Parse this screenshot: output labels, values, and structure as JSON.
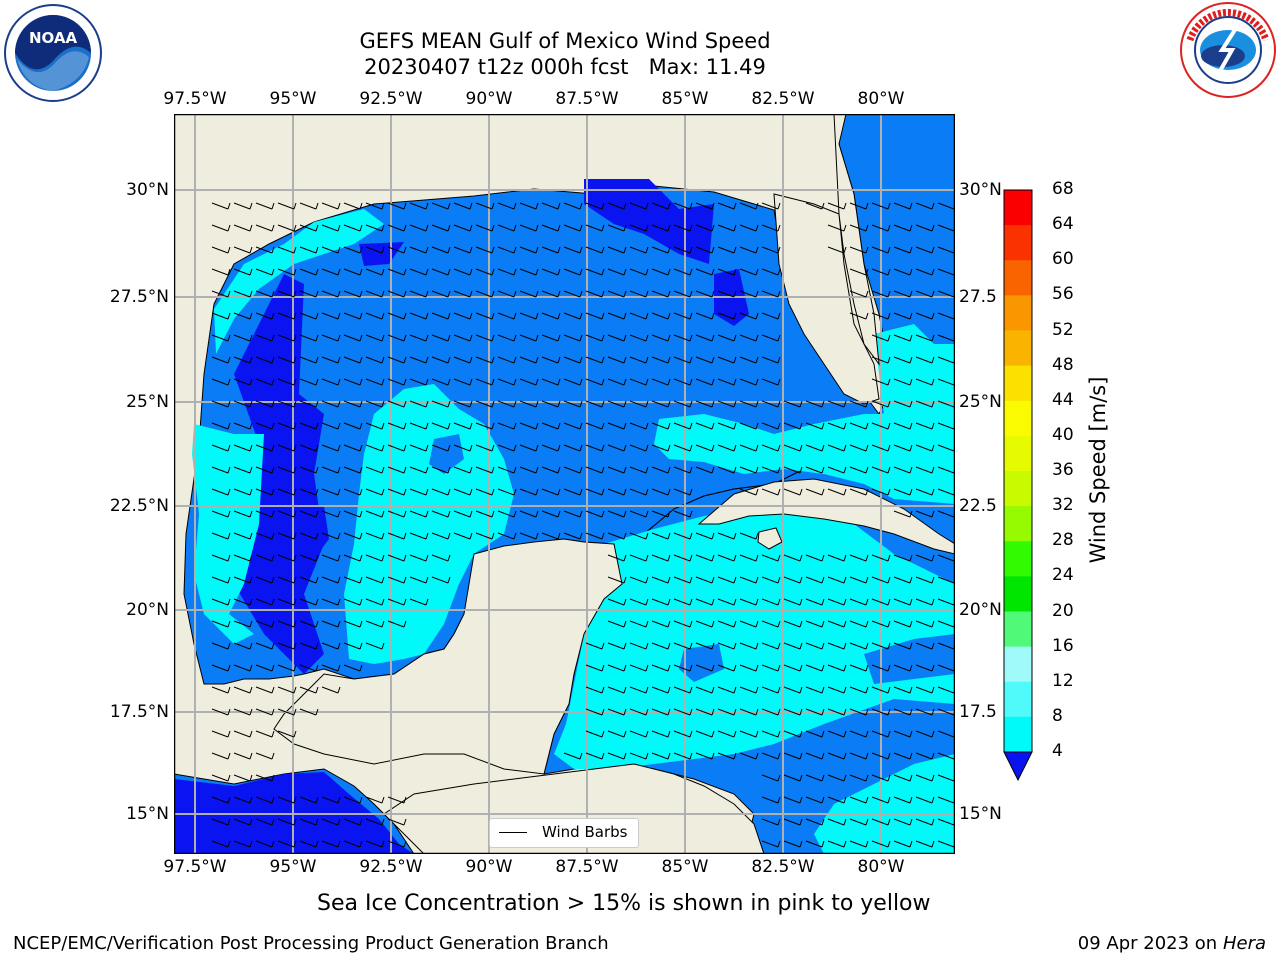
{
  "title": {
    "line1": "GEFS MEAN Gulf of Mexico Wind Speed",
    "line2": "20230407 t12z 000h fcst   Max: 11.49"
  },
  "logos": {
    "left": {
      "text": "NOAA",
      "ring_text": "NATIONAL OCEANIC AND ATMOSPHERIC ADMINISTRATION · U.S. DEPARTMENT OF COMMERCE"
    },
    "right": {
      "ring_text": "NATIONAL WEATHER SERVICE"
    }
  },
  "map": {
    "lon_ticks": [
      "97.5°W",
      "95°W",
      "92.5°W",
      "90°W",
      "87.5°W",
      "85°W",
      "82.5°W",
      "80°W"
    ],
    "lat_ticks_left": [
      "30°N",
      "27.5°N",
      "25°N",
      "22.5°N",
      "20°N",
      "17.5°N",
      "15°N"
    ],
    "lat_ticks_right": [
      "30°N",
      "27.5",
      "25°N",
      "22.5",
      "20°N",
      "17.5",
      "15°N"
    ],
    "colors": {
      "land": "#efedde",
      "ocean_4_8": "#0a7cf6",
      "ocean_lt_4": "#0a14f0",
      "ocean_8_12": "#00fafa",
      "grid": "#b0b0b0"
    },
    "legend_label": "Wind Barbs"
  },
  "colorbar": {
    "ticks": [
      "68",
      "64",
      "60",
      "56",
      "52",
      "48",
      "44",
      "40",
      "36",
      "32",
      "28",
      "24",
      "20",
      "16",
      "12",
      "8",
      "4"
    ],
    "label": "Wind Speed [m/s]",
    "colors": [
      "#fa0000",
      "#fa3200",
      "#fa6400",
      "#fa9600",
      "#fab400",
      "#fae100",
      "#fafa00",
      "#e6fa00",
      "#c8fa00",
      "#96fa00",
      "#32fa00",
      "#00e600",
      "#50fa78",
      "#a0fafa",
      "#50fafa",
      "#00fafa",
      "#0a7cf6"
    ],
    "extend_color": "#0a14f0"
  },
  "footer": {
    "note": "Sea Ice Concentration > 15% is shown in pink to yellow",
    "credit": "NCEP/EMC/Verification Post Processing Product Generation Branch",
    "date": "09 Apr 2023 on ",
    "machine": "Hera"
  }
}
